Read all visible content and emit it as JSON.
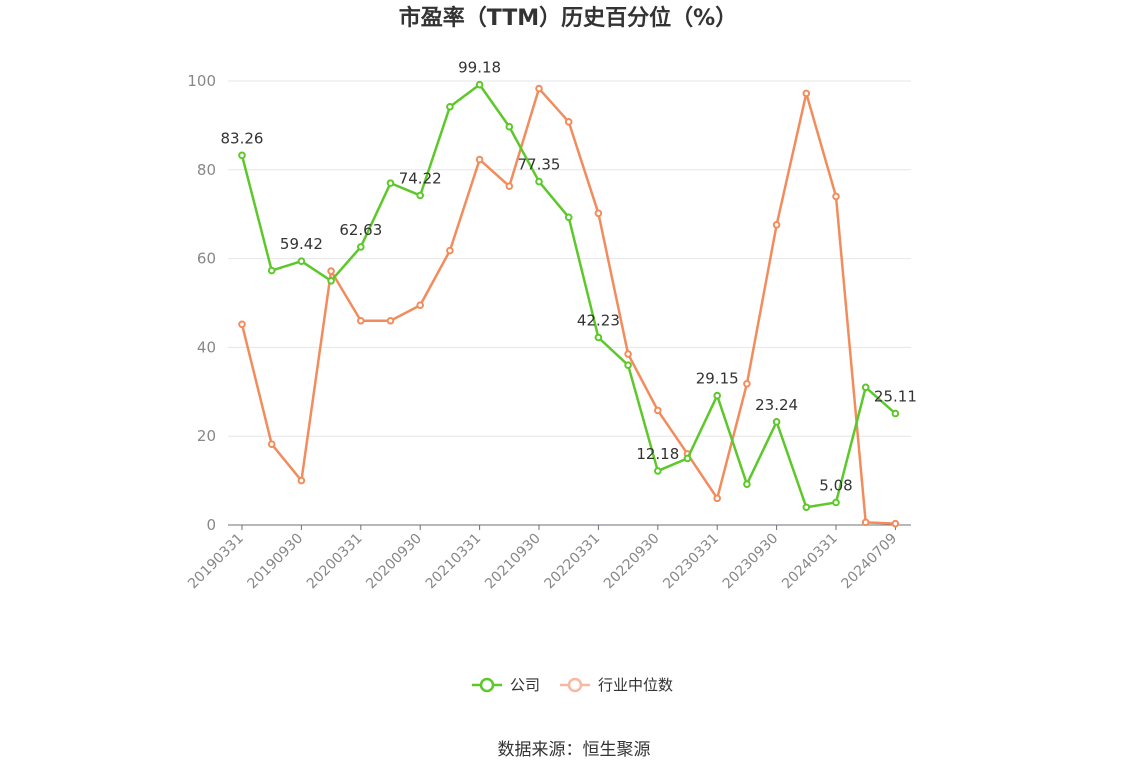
{
  "chart_data": {
    "type": "line",
    "title": "市盈率（TTM）历史百分位（%）",
    "source": "数据来源：恒生聚源",
    "ylim": [
      0,
      100
    ],
    "yticks": [
      0,
      20,
      40,
      60,
      80,
      100
    ],
    "grid": true,
    "legend_position": "bottom",
    "x": [
      "20190331",
      "20190630",
      "20190930",
      "20191231",
      "20200331",
      "20200630",
      "20200930",
      "20201231",
      "20210331",
      "20210630",
      "20210930",
      "20211231",
      "20220331",
      "20220630",
      "20220930",
      "20221231",
      "20230331",
      "20230630",
      "20230930",
      "20231231",
      "20240331",
      "20240630",
      "20240709"
    ],
    "xtick_labels": [
      "20190331",
      "20190930",
      "20200331",
      "20200930",
      "20210331",
      "20210930",
      "20220331",
      "20220930",
      "20230331",
      "20230930",
      "20240331",
      "20240709"
    ],
    "series": [
      {
        "name": "公司",
        "color": "#5cc82a",
        "values": [
          83.26,
          57.3,
          59.42,
          55.0,
          62.63,
          77.0,
          74.22,
          94.2,
          99.18,
          89.7,
          77.35,
          69.3,
          42.23,
          36.0,
          12.18,
          15.0,
          29.15,
          9.2,
          23.24,
          4.0,
          5.08,
          31.0,
          25.11
        ],
        "labels": {
          "0": "83.26",
          "2": "59.42",
          "4": "62.63",
          "6": "74.22",
          "8": "99.18",
          "10": "77.35",
          "12": "42.23",
          "14": "12.18",
          "16": "29.15",
          "18": "23.24",
          "20": "5.08",
          "22": "25.11"
        }
      },
      {
        "name": "行业中位数",
        "color": "#f28c5c",
        "legend_color": "#f8b9a0",
        "values": [
          45.2,
          18.2,
          10.0,
          57.2,
          46.0,
          46.0,
          49.5,
          61.8,
          82.3,
          76.3,
          98.3,
          90.8,
          70.2,
          38.5,
          25.8,
          16.0,
          6.0,
          31.8,
          67.6,
          97.2,
          74.0,
          0.6,
          0.3
        ]
      }
    ]
  }
}
